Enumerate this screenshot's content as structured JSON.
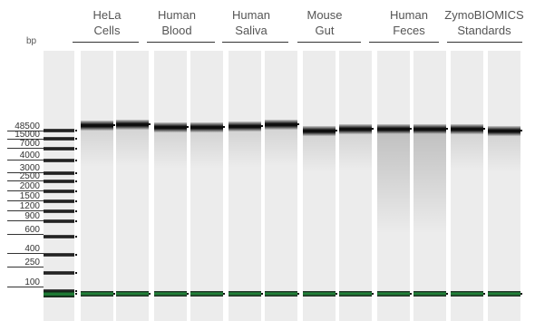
{
  "unit_label": "bp",
  "samples": [
    {
      "label": "HeLa\nCells"
    },
    {
      "label": "Human\nBlood"
    },
    {
      "label": "Human\nSaliva"
    },
    {
      "label": "Mouse\nGut"
    },
    {
      "label": "Human\nFeces"
    },
    {
      "label": "ZymoBIOMICS\nStandards"
    }
  ],
  "ladder_sizes": [
    "48500",
    "15000",
    "7000",
    "4000",
    "3000",
    "2500",
    "2000",
    "1500",
    "1200",
    "900",
    "600",
    "400",
    "250",
    "100"
  ],
  "colors": {
    "band": "#0d0d0d",
    "marker": "#1f8f3a",
    "lane": "#ececec",
    "background": "#ffffff"
  }
}
